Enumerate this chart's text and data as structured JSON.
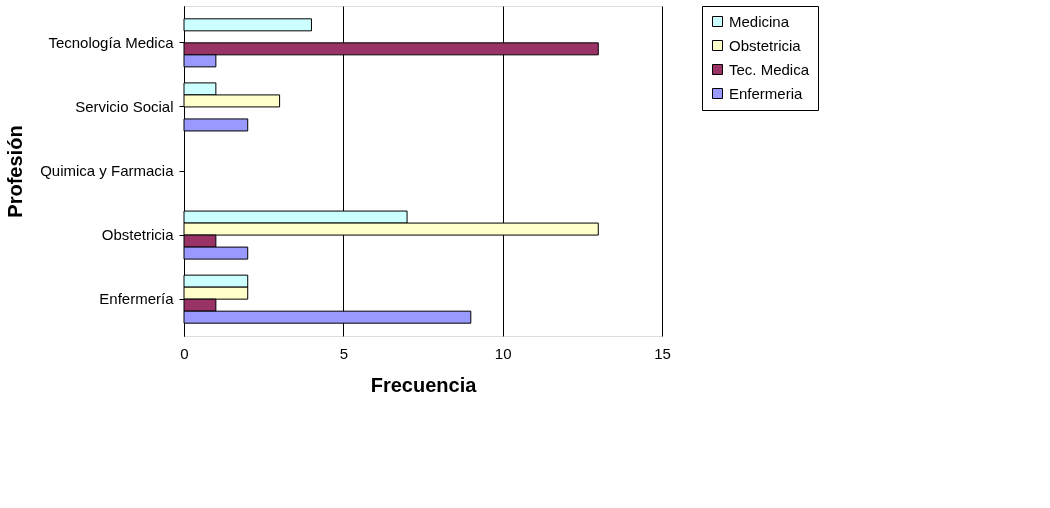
{
  "chart_data": {
    "type": "bar",
    "orientation": "horizontal",
    "xlabel": "Frecuencia",
    "ylabel": "Profesión",
    "categories": [
      "Tecnología Medica",
      "Servicio Social",
      "Quimica y Farmacia",
      "Obstetricia",
      "Enfermería"
    ],
    "series": [
      {
        "name": "Medicina",
        "color": "#ccffff",
        "values": [
          4,
          1,
          0,
          7,
          2
        ]
      },
      {
        "name": "Obstetricia",
        "color": "#ffffcc",
        "values": [
          0,
          3,
          0,
          13,
          2
        ]
      },
      {
        "name": "Tec. Medica",
        "color": "#993366",
        "values": [
          13,
          0,
          0,
          1,
          1
        ]
      },
      {
        "name": "Enfermeria",
        "color": "#9999ff",
        "values": [
          1,
          2,
          0,
          2,
          9
        ]
      }
    ],
    "xlim": [
      0,
      15
    ],
    "xticks": [
      0,
      5,
      10,
      15
    ],
    "grid": "x",
    "legend": "right"
  }
}
